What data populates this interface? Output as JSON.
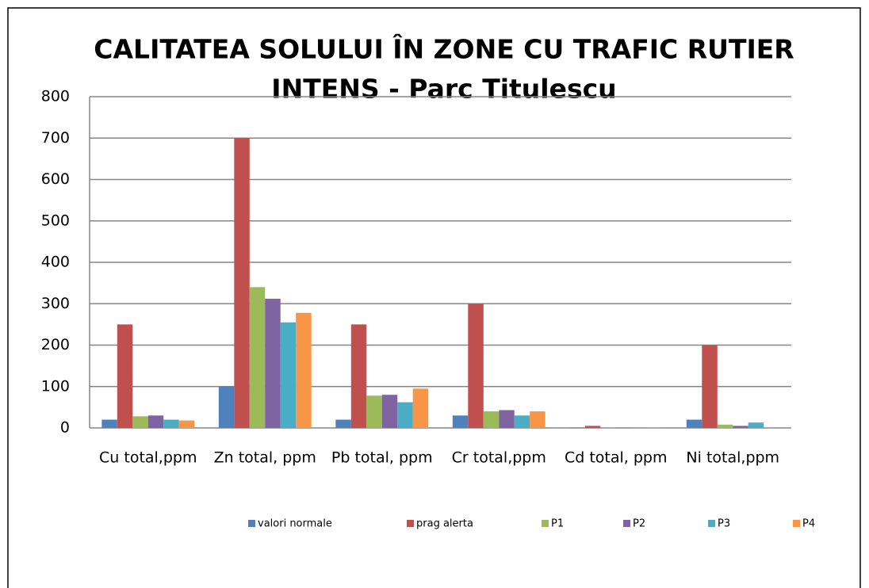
{
  "chart_data": {
    "type": "bar",
    "title_lines": [
      "CALITATEA SOLULUI ÎN ZONE CU TRAFIC RUTIER",
      "INTENS - Parc Titulescu"
    ],
    "categories": [
      "Cu total,ppm",
      "Zn total, ppm",
      "Pb total, ppm",
      "Cr total,ppm",
      "Cd total, ppm",
      "Ni total,ppm"
    ],
    "series": [
      {
        "name": "valori normale",
        "color": "#4f81bd",
        "values": [
          20,
          100,
          20,
          30,
          1,
          20
        ]
      },
      {
        "name": "prag alerta",
        "color": "#c0504d",
        "values": [
          250,
          700,
          250,
          300,
          5,
          200
        ]
      },
      {
        "name": "P1",
        "color": "#9bbb59",
        "values": [
          28,
          340,
          78,
          40,
          0.5,
          8
        ]
      },
      {
        "name": "P2",
        "color": "#8064a2",
        "values": [
          30,
          312,
          80,
          43,
          0.5,
          5
        ]
      },
      {
        "name": "P3",
        "color": "#4bacc6",
        "values": [
          20,
          255,
          62,
          30,
          0.5,
          13
        ]
      },
      {
        "name": "P4",
        "color": "#f79646",
        "values": [
          18,
          278,
          95,
          40,
          0.5,
          0
        ]
      }
    ],
    "ylim": [
      0,
      800
    ],
    "yticks": [
      0,
      100,
      200,
      300,
      400,
      500,
      600,
      700,
      800
    ],
    "grid": true,
    "legend": "bottom"
  }
}
